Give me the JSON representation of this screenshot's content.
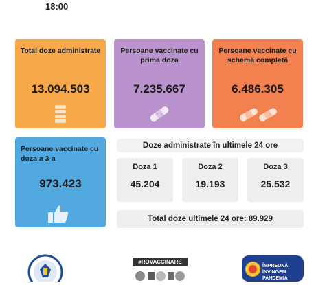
{
  "header": {
    "time": "18:00"
  },
  "cards": {
    "total_doses": {
      "label": "Total doze administrate",
      "value": "13.094.503",
      "color": "#f6a84a",
      "icon": "vial-stack-icon"
    },
    "first_dose": {
      "label": "Persoane vaccinate cu prima doza",
      "value": "7.235.667",
      "color": "#ba93ce",
      "icon": "bandage-icon"
    },
    "full_schema": {
      "label": "Persoane vaccinate cu schemă completă",
      "value": "6.486.305",
      "color": "#f3814f",
      "icon": "double-bandage-icon"
    },
    "third_dose": {
      "label": "Persoane vaccinate cu doza a 3-a",
      "value": "973.423",
      "color": "#52a9e0",
      "icon": "thumbs-up-icon"
    }
  },
  "last24h": {
    "title": "Doze administrate în ultimele 24 ore",
    "doses": [
      {
        "label": "Doza 1",
        "value": "45.204"
      },
      {
        "label": "Doza 2",
        "value": "19.193"
      },
      {
        "label": "Doza 3",
        "value": "25.532"
      }
    ],
    "total_label": "Total doze ultimele 24 ore: 89.929"
  },
  "footer": {
    "government_logo": "government-seal-logo",
    "campaign_tag": "#ROVACCINARE",
    "badge_line1": "ÎMPREUNĂ",
    "badge_line2": "ÎNVINGEM",
    "badge_line3": "PANDEMIA"
  }
}
